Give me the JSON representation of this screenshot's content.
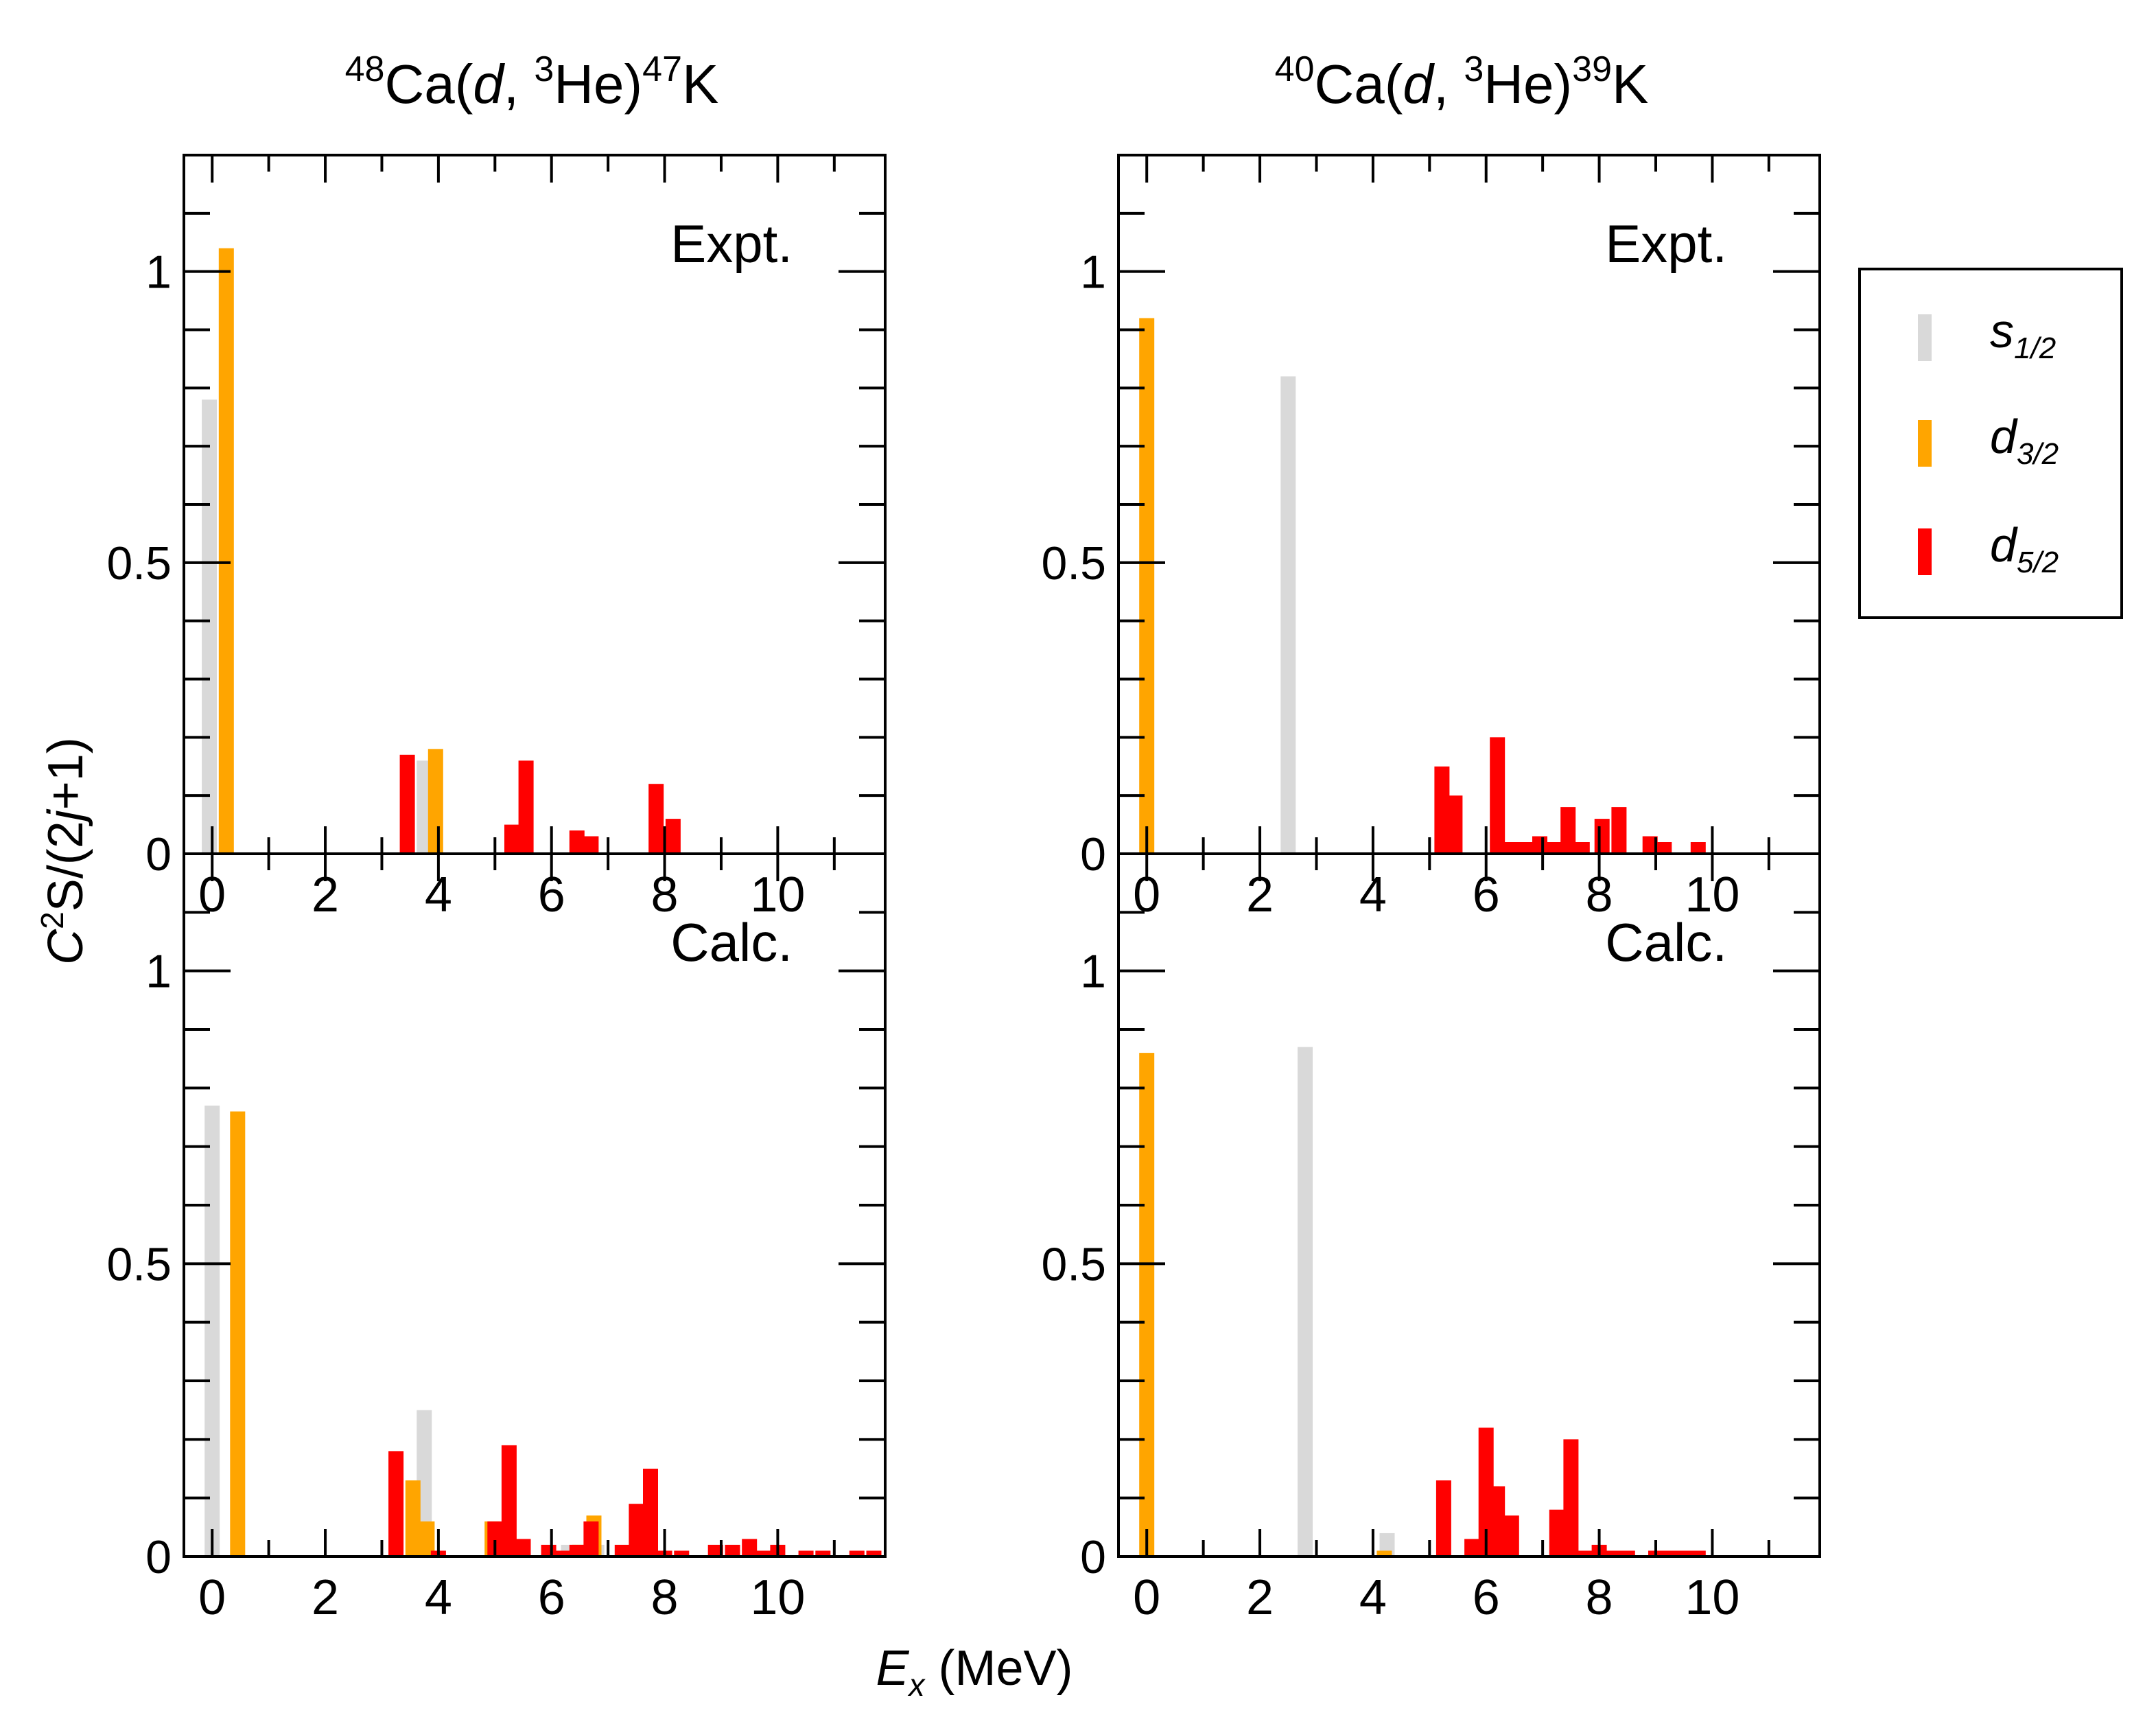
{
  "figure": {
    "y_axis_label": {
      "main": "C",
      "sup": "2",
      "mid": "S/(2",
      "ital": "j",
      "tail": "+1)"
    },
    "x_axis_label": {
      "main": "E",
      "sub": "x",
      "unit": " (MeV)"
    }
  },
  "legend": [
    {
      "key": "s12",
      "base": "s",
      "sub": "1/2",
      "color": "#d9d9d9"
    },
    {
      "key": "d32",
      "base": "d",
      "sub": "3/2",
      "color": "#ffa500"
    },
    {
      "key": "d52",
      "base": "d",
      "sub": "5/2",
      "color": "#ff0000"
    }
  ],
  "chart_data": [
    {
      "type": "bar",
      "title": {
        "pre_sup": "48",
        "a": "Ca(",
        "b": "d",
        "c": ", ",
        "sup2": "3",
        "d": "He)",
        "sup3": "47",
        "e": "K"
      },
      "label": "Expt.",
      "xlabel": "E_x (MeV)",
      "ylabel": "C^2S/(2j+1)",
      "xlim": [
        -0.5,
        11.9
      ],
      "ylim": [
        0,
        1.2
      ],
      "xticks": [
        0,
        2,
        4,
        6,
        8,
        10
      ],
      "yticks": [
        0,
        0.5,
        1
      ],
      "yticklabels": [
        "0",
        "0.5",
        "1"
      ],
      "series": [
        {
          "name": "s1/2",
          "points": [
            [
              -0.05,
              0.78
            ],
            [
              3.75,
              0.16
            ]
          ]
        },
        {
          "name": "d3/2",
          "points": [
            [
              0.25,
              1.04
            ],
            [
              3.95,
              0.18
            ]
          ]
        },
        {
          "name": "d5/2",
          "points": [
            [
              3.45,
              0.17
            ],
            [
              5.3,
              0.05
            ],
            [
              5.55,
              0.16
            ],
            [
              6.45,
              0.04
            ],
            [
              6.7,
              0.03
            ],
            [
              7.85,
              0.12
            ],
            [
              8.15,
              0.06
            ]
          ]
        }
      ]
    },
    {
      "type": "bar",
      "title": {
        "pre_sup": "40",
        "a": "Ca(",
        "b": "d",
        "c": ", ",
        "sup2": "3",
        "d": "He)",
        "sup3": "39",
        "e": "K"
      },
      "label": "Expt.",
      "xlabel": "E_x (MeV)",
      "ylabel": "C^2S/(2j+1)",
      "xlim": [
        -0.5,
        11.9
      ],
      "ylim": [
        0,
        1.2
      ],
      "xticks": [
        0,
        2,
        4,
        6,
        8,
        10
      ],
      "yticks": [
        0,
        0.5,
        1
      ],
      "yticklabels": [
        "0",
        "0.5",
        "1"
      ],
      "series": [
        {
          "name": "s1/2",
          "points": [
            [
              2.5,
              0.82
            ]
          ]
        },
        {
          "name": "d3/2",
          "points": [
            [
              0,
              0.92
            ]
          ]
        },
        {
          "name": "d5/2",
          "points": [
            [
              5.22,
              0.15
            ],
            [
              5.45,
              0.1
            ],
            [
              6.2,
              0.2
            ],
            [
              6.45,
              0.02
            ],
            [
              6.7,
              0.02
            ],
            [
              6.95,
              0.03
            ],
            [
              7.2,
              0.02
            ],
            [
              7.45,
              0.08
            ],
            [
              7.7,
              0.02
            ],
            [
              8.05,
              0.06
            ],
            [
              8.35,
              0.08
            ],
            [
              8.9,
              0.03
            ],
            [
              9.15,
              0.02
            ],
            [
              9.75,
              0.02
            ]
          ]
        }
      ]
    },
    {
      "type": "bar",
      "label": "Calc.",
      "xlabel": "E_x (MeV)",
      "ylabel": "C^2S/(2j+1)",
      "xlim": [
        -0.5,
        11.9
      ],
      "ylim": [
        0,
        1.2
      ],
      "xticks": [
        0,
        2,
        4,
        6,
        8,
        10
      ],
      "yticks": [
        0,
        0.5,
        1
      ],
      "xticklabels": [
        "0",
        "2",
        "4",
        "6",
        "8",
        "10"
      ],
      "yticklabels": [
        "0",
        "0.5",
        "1"
      ],
      "series": [
        {
          "name": "s1/2",
          "points": [
            [
              0,
              0.77
            ],
            [
              3.75,
              0.25
            ],
            [
              6.3,
              0.02
            ],
            [
              6.5,
              0.02
            ],
            [
              6.8,
              0.02
            ]
          ]
        },
        {
          "name": "d3/2",
          "points": [
            [
              0.45,
              0.76
            ],
            [
              3.55,
              0.13
            ],
            [
              3.8,
              0.06
            ],
            [
              4.95,
              0.06
            ],
            [
              6.75,
              0.07
            ],
            [
              6.5,
              0.02
            ]
          ]
        },
        {
          "name": "d5/2",
          "points": [
            [
              3.25,
              0.18
            ],
            [
              4.0,
              0.01
            ],
            [
              5.0,
              0.06
            ],
            [
              5.25,
              0.19
            ],
            [
              5.5,
              0.03
            ],
            [
              5.95,
              0.02
            ],
            [
              6.2,
              0.01
            ],
            [
              6.45,
              0.02
            ],
            [
              6.7,
              0.06
            ],
            [
              7.25,
              0.02
            ],
            [
              7.5,
              0.09
            ],
            [
              7.75,
              0.15
            ],
            [
              8.0,
              0.01
            ],
            [
              8.3,
              0.01
            ],
            [
              8.9,
              0.02
            ],
            [
              9.2,
              0.02
            ],
            [
              9.5,
              0.03
            ],
            [
              9.75,
              0.01
            ],
            [
              10.0,
              0.02
            ],
            [
              10.5,
              0.01
            ],
            [
              10.8,
              0.01
            ],
            [
              11.4,
              0.01
            ],
            [
              11.7,
              0.01
            ]
          ]
        }
      ]
    },
    {
      "type": "bar",
      "label": "Calc.",
      "xlabel": "E_x (MeV)",
      "ylabel": "C^2S/(2j+1)",
      "xlim": [
        -0.5,
        11.9
      ],
      "ylim": [
        0,
        1.2
      ],
      "xticks": [
        0,
        2,
        4,
        6,
        8,
        10
      ],
      "yticks": [
        0,
        0.5,
        1
      ],
      "xticklabels": [
        "0",
        "2",
        "4",
        "6",
        "8",
        "10"
      ],
      "yticklabels": [
        "0",
        "0.5",
        "1"
      ],
      "series": [
        {
          "name": "s1/2",
          "points": [
            [
              2.8,
              0.87
            ],
            [
              4.25,
              0.04
            ]
          ]
        },
        {
          "name": "d3/2",
          "points": [
            [
              0,
              0.86
            ],
            [
              4.2,
              0.01
            ],
            [
              6.1,
              0.12
            ]
          ]
        },
        {
          "name": "d5/2",
          "points": [
            [
              5.25,
              0.13
            ],
            [
              5.75,
              0.03
            ],
            [
              6.0,
              0.22
            ],
            [
              6.2,
              0.12
            ],
            [
              6.45,
              0.07
            ],
            [
              7.25,
              0.08
            ],
            [
              7.5,
              0.2
            ],
            [
              7.75,
              0.01
            ],
            [
              8.0,
              0.02
            ],
            [
              8.25,
              0.01
            ],
            [
              8.5,
              0.01
            ],
            [
              9.0,
              0.01
            ],
            [
              9.25,
              0.01
            ],
            [
              9.5,
              0.01
            ],
            [
              9.75,
              0.01
            ]
          ]
        }
      ]
    }
  ]
}
